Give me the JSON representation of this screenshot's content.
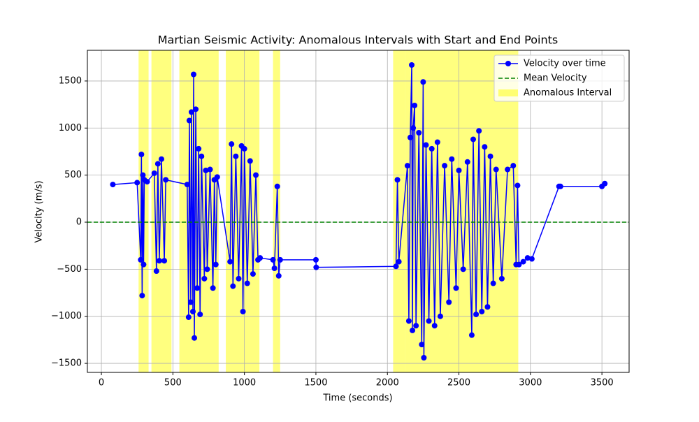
{
  "chart_data": {
    "type": "line",
    "title": "Martian Seismic Activity: Anomalous Intervals with Start and End Points",
    "xlabel": "Time (seconds)",
    "ylabel": "Velocity (m/s)",
    "xlim": [
      -98,
      3690
    ],
    "ylim": [
      -1596,
      1826
    ],
    "xticks": [
      0,
      500,
      1000,
      1500,
      2000,
      2500,
      3000,
      3500
    ],
    "yticks": [
      {
        "value": -1500,
        "label": "−1500"
      },
      {
        "value": -1000,
        "label": "−1000"
      },
      {
        "value": -500,
        "label": "−500"
      },
      0,
      500,
      1000,
      1500
    ],
    "grid": true,
    "legend": "upper right",
    "spans": {
      "name": "Anomalous Interval",
      "color": "#ffff00",
      "intervals": [
        [
          260,
          330
        ],
        [
          350,
          490
        ],
        [
          545,
          820
        ],
        [
          870,
          1105
        ],
        [
          1200,
          1250
        ],
        [
          2040,
          2125
        ],
        [
          2125,
          2915
        ]
      ]
    },
    "hlines": [
      {
        "name": "Mean Velocity",
        "value": 0,
        "color": "#008000"
      }
    ],
    "x": [
      80,
      250,
      275,
      280,
      285,
      290,
      295,
      300,
      320,
      370,
      385,
      395,
      405,
      420,
      440,
      450,
      600,
      610,
      615,
      625,
      630,
      640,
      645,
      650,
      660,
      670,
      680,
      690,
      700,
      720,
      730,
      740,
      760,
      780,
      790,
      800,
      810,
      900,
      910,
      920,
      940,
      960,
      980,
      990,
      1000,
      1020,
      1040,
      1060,
      1080,
      1095,
      1110,
      1200,
      1210,
      1230,
      1240,
      1250,
      1500,
      1502,
      2060,
      2070,
      2080,
      2140,
      2150,
      2160,
      2170,
      2175,
      2180,
      2190,
      2200,
      2220,
      2240,
      2250,
      2255,
      2270,
      2290,
      2310,
      2330,
      2350,
      2370,
      2400,
      2430,
      2450,
      2480,
      2500,
      2530,
      2560,
      2590,
      2600,
      2620,
      2640,
      2660,
      2680,
      2700,
      2720,
      2740,
      2760,
      2800,
      2840,
      2880,
      2900,
      2910,
      2920,
      2950,
      2980,
      3010,
      3200,
      3210,
      3500,
      3520
    ],
    "series": [
      {
        "name": "Velocity over time",
        "color": "#0000ff",
        "values": [
          400,
          420,
          -400,
          720,
          -780,
          500,
          -450,
          450,
          430,
          520,
          -520,
          620,
          -410,
          670,
          -410,
          450,
          400,
          -1010,
          1080,
          -850,
          1170,
          -950,
          1570,
          -1230,
          1200,
          -700,
          780,
          -980,
          700,
          -600,
          550,
          -500,
          560,
          -700,
          450,
          -450,
          480,
          -420,
          830,
          -680,
          700,
          -600,
          810,
          -950,
          780,
          -650,
          650,
          -550,
          500,
          -400,
          -380,
          -400,
          -490,
          380,
          -570,
          -400,
          -400,
          -480,
          -470,
          450,
          -420,
          600,
          -1050,
          900,
          1670,
          -1150,
          1000,
          1240,
          -1100,
          950,
          -1300,
          1490,
          -1440,
          820,
          -1050,
          780,
          -1100,
          850,
          -1000,
          600,
          -850,
          670,
          -700,
          550,
          -500,
          640,
          -1200,
          880,
          -980,
          970,
          -950,
          800,
          -900,
          700,
          -650,
          560,
          -600,
          560,
          600,
          -450,
          390,
          -450,
          -420,
          -380,
          -390,
          380,
          380,
          380,
          410
        ]
      }
    ]
  }
}
